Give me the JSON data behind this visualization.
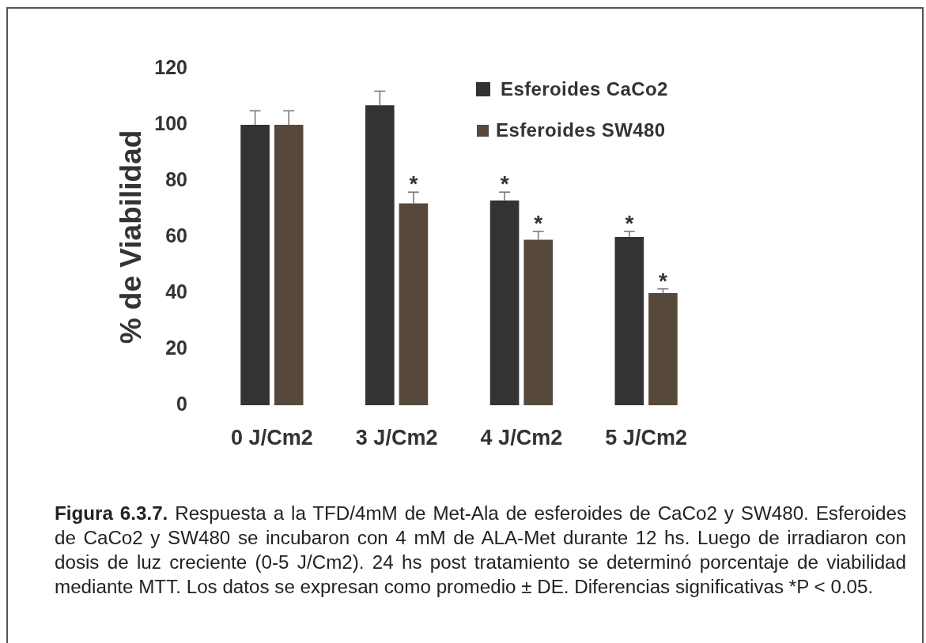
{
  "chart_data": {
    "type": "bar",
    "ylabel": "% de Viabilidad",
    "categories": [
      "0 J/Cm2",
      "3 J/Cm2",
      "4 J/Cm2",
      "5 J/Cm2"
    ],
    "series": [
      {
        "name": "Esferoides CaCo2",
        "color": "#333333",
        "values": [
          100,
          107,
          73,
          60
        ],
        "errors": [
          [
            100,
            105
          ],
          [
            107,
            112
          ],
          [
            73,
            76
          ],
          [
            60,
            62
          ]
        ],
        "value_labels": [
          null,
          null,
          "*",
          "*"
        ]
      },
      {
        "name": "Esferoides SW480",
        "color": "#56493b",
        "values": [
          100,
          72,
          59,
          40
        ],
        "errors": [
          [
            100,
            105
          ],
          [
            72,
            76
          ],
          [
            59,
            62
          ],
          [
            40,
            41.5
          ]
        ],
        "value_labels": [
          null,
          "*",
          "*",
          "*"
        ]
      }
    ],
    "ylim": [
      0,
      120
    ],
    "yticks": [
      0,
      20,
      40,
      60,
      80,
      100,
      120
    ],
    "legend": "top right",
    "annotations": [
      "Figura 6.3.7.",
      "Respuesta a la TFD/4mM de Met-Ala de esferoides de CaCo2 y SW480. Esferoides de CaCo2 y SW480 se incubaron con 4 mM de ALA-Met durante 12 hs. Luego de irradiaron con dosis de luz creciente (0-5 J/Cm2). 24 hs post tratamiento se determinó porcentaje de viabilidad mediante MTT. Los datos se expresan como promedio ± DE. Diferencias significativas *P < 0.05."
    ]
  }
}
